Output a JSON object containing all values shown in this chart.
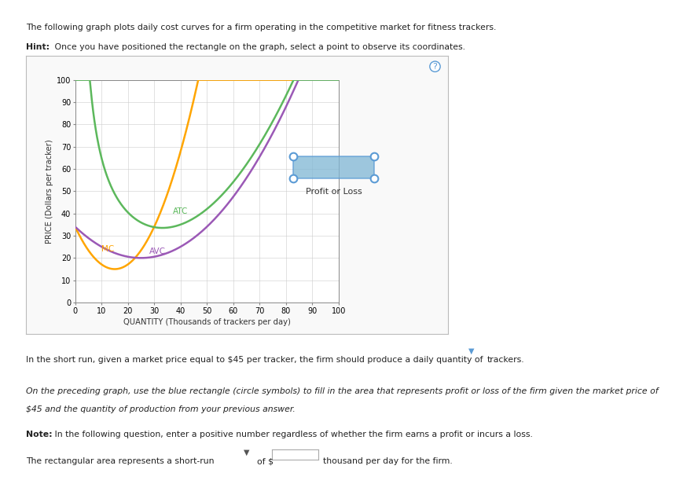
{
  "title_text": "The following graph plots daily cost curves for a firm operating in the competitive market for fitness trackers.",
  "hint_bold": "Hint:",
  "hint_rest": " Once you have positioned the rectangle on the graph, select a point to observe its coordinates.",
  "xlabel": "QUANTITY (Thousands of trackers per day)",
  "ylabel": "PRICE (Dollars per tracker)",
  "xlim": [
    0,
    100
  ],
  "ylim": [
    0,
    100
  ],
  "xticks": [
    0,
    10,
    20,
    30,
    40,
    50,
    60,
    70,
    80,
    90,
    100
  ],
  "yticks": [
    0,
    10,
    20,
    30,
    40,
    50,
    60,
    70,
    80,
    90,
    100
  ],
  "mc_color": "#FFA500",
  "atc_color": "#5CB85C",
  "avc_color": "#9B59B6",
  "legend_rect_color": "#7EB6D4",
  "legend_rect_edge": "#5B9BD5",
  "legend_rect_label": "Profit or Loss",
  "mc_label": "MC",
  "atc_label": "ATC",
  "avc_label": "AVC",
  "background_color": "#FFFFFF",
  "plot_bg_color": "#FFFFFF",
  "panel_bg_color": "#F9F9F9",
  "grid_color": "#CCCCCC",
  "q1": "In the short run, given a market price equal to $45 per tracker, the firm should produce a daily quantity of",
  "q2": "trackers.",
  "italic_line1": "On the preceding graph, use the blue rectangle (circle symbols) to fill in the area that represents profit or loss of the firm given the market price of",
  "italic_line2": "$45 and the quantity of production from your previous answer.",
  "note_bold": "Note:",
  "note_rest": " In the following question, enter a positive number regardless of whether the firm earns a profit or incurs a loss.",
  "last1": "The rectangular area represents a short-run",
  "last2": "of $",
  "last3": "thousand per day for the firm."
}
